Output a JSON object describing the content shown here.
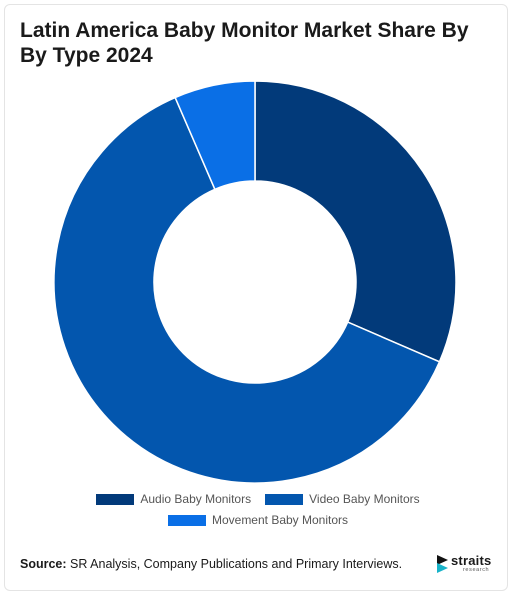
{
  "title": "Latin America Baby Monitor Market Share By By Type 2024",
  "source_label": "Source:",
  "source_text": " SR Analysis, Company Publications and Primary Interviews.",
  "logo": {
    "word": "straits",
    "sub": "research"
  },
  "colors": {
    "audio": "#023a7a",
    "video": "#0356ae",
    "movement": "#0a6fe6"
  },
  "chart_data": {
    "type": "pie",
    "variant": "donut",
    "title": "Latin America Baby Monitor Market Share By By Type 2024",
    "legend_position": "bottom",
    "slices": [
      {
        "name": "Audio Baby Monitors",
        "value": 31.5,
        "color": "#023a7a"
      },
      {
        "name": "Video Baby Monitors",
        "value": 62.0,
        "color": "#0356ae"
      },
      {
        "name": "Movement Baby Monitors",
        "value": 6.5,
        "color": "#0a6fe6"
      }
    ]
  }
}
